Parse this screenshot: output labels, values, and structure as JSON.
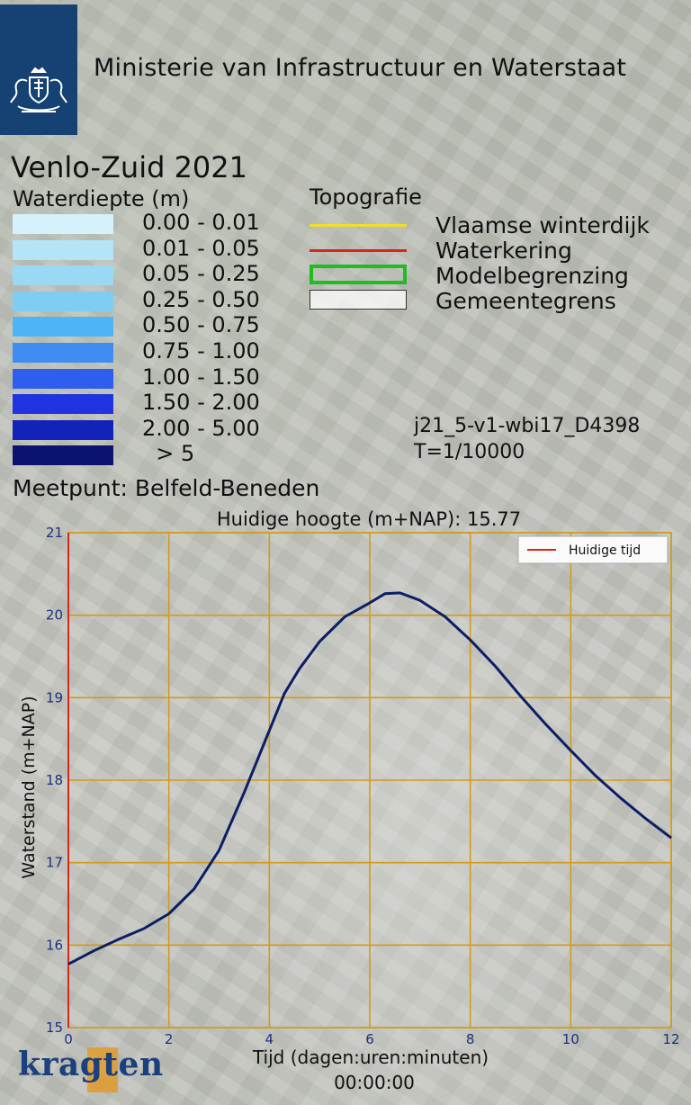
{
  "header": {
    "ministry_name": "Ministerie van Infrastructuur en Waterstaat"
  },
  "map": {
    "title": "Venlo-Zuid 2021",
    "depth_legend": {
      "title": "Waterdiepte (m)",
      "items": [
        {
          "label": "0.00 - 0.01",
          "color": "#d6f1fb"
        },
        {
          "label": "0.01 - 0.05",
          "color": "#b4e4f6"
        },
        {
          "label": "0.05 - 0.25",
          "color": "#9bd8f4"
        },
        {
          "label": "0.25 - 0.50",
          "color": "#7fcdf3"
        },
        {
          "label": "0.50 - 0.75",
          "color": "#4fb4f5"
        },
        {
          "label": "0.75 - 1.00",
          "color": "#3f8cf2"
        },
        {
          "label": "1.00 - 1.50",
          "color": "#2e5ef0"
        },
        {
          "label": "1.50 - 2.00",
          "color": "#1f34e0"
        },
        {
          "label": "2.00 - 5.00",
          "color": "#1322b8"
        },
        {
          "label": "> 5",
          "color": "#0a1470"
        }
      ]
    },
    "topo_legend": {
      "title": "Topografie",
      "items": [
        {
          "label": "Vlaamse winterdijk",
          "symbol": "line",
          "color": "#f2de2a"
        },
        {
          "label": "Waterkering",
          "symbol": "line",
          "color": "#d9261c"
        },
        {
          "label": "Modelbegrenzing",
          "symbol": "box",
          "color": "#22bb22"
        },
        {
          "label": "Gemeentegrens",
          "symbol": "box",
          "color": "#333333"
        }
      ]
    },
    "scenario_id": "j21_5-v1-wbi17_D4398",
    "return_period": "T=1/10000",
    "measurement_point": "Meetpunt: Belfeld-Beneden"
  },
  "chart_data": {
    "type": "line",
    "title": "Huidige hoogte (m+NAP): 15.77",
    "xlabel": "Tijd (dagen:uren:minuten)",
    "current_time": "00:00:00",
    "ylabel": "Waterstand (m+NAP)",
    "xlim": [
      0,
      12
    ],
    "ylim": [
      15,
      21
    ],
    "xticks": [
      0,
      2,
      4,
      6,
      8,
      10,
      12
    ],
    "yticks": [
      15,
      16,
      17,
      18,
      19,
      20,
      21
    ],
    "grid": true,
    "legend": {
      "placement": "top-right",
      "entries": [
        {
          "name": "Huidige tijd",
          "color": "#d9261c"
        }
      ]
    },
    "current_time_x": 0,
    "series": [
      {
        "color": "#0c1f66",
        "x": [
          0,
          0.5,
          1,
          1.5,
          2,
          2.5,
          3,
          3.5,
          4,
          4.3,
          4.6,
          5,
          5.5,
          6,
          6.3,
          6.6,
          7,
          7.5,
          8,
          8.5,
          9,
          9.5,
          10,
          10.5,
          11,
          11.5,
          12
        ],
        "y": [
          15.77,
          15.93,
          16.07,
          16.2,
          16.38,
          16.68,
          17.15,
          17.85,
          18.6,
          19.05,
          19.35,
          19.68,
          19.98,
          20.15,
          20.26,
          20.27,
          20.18,
          19.98,
          19.7,
          19.38,
          19.02,
          18.68,
          18.36,
          18.05,
          17.78,
          17.53,
          17.3
        ]
      }
    ]
  },
  "branding": {
    "logo_text": "kragten"
  }
}
